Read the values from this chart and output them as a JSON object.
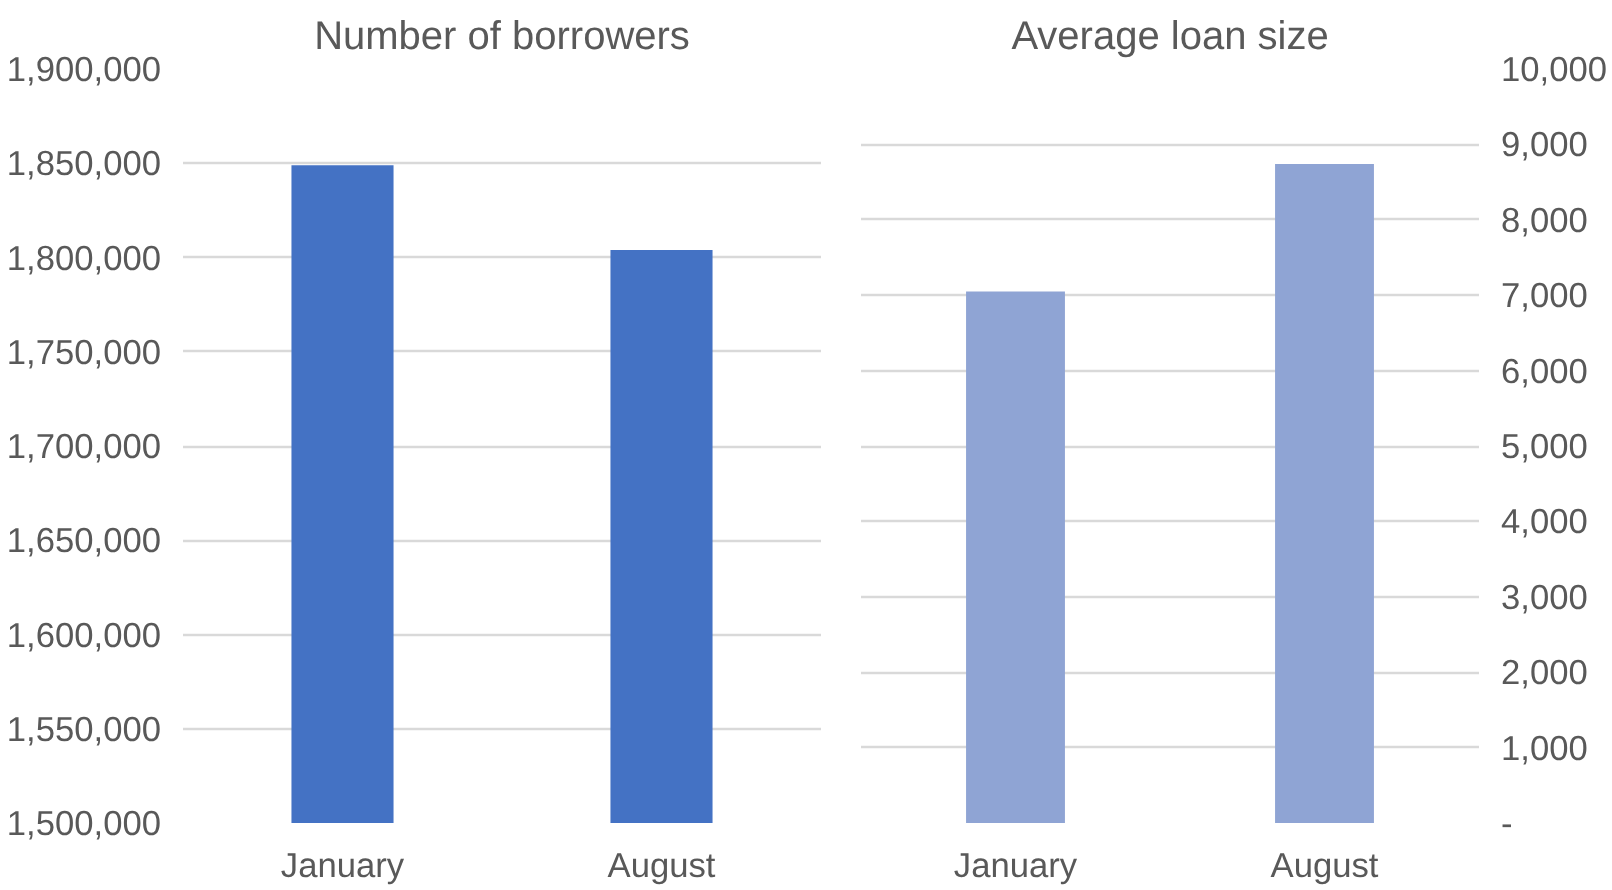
{
  "chart_data": [
    {
      "type": "bar",
      "title": "Number of borrowers",
      "categories": [
        "January",
        "August"
      ],
      "series": [
        {
          "color": "#4472c4",
          "values": [
            1849000,
            1804000
          ]
        }
      ],
      "ylim": [
        1500000,
        1900000
      ],
      "yticks": [
        {
          "value": 1500000,
          "label": "1,500,000"
        },
        {
          "value": 1550000,
          "label": "1,550,000"
        },
        {
          "value": 1600000,
          "label": "1,600,000"
        },
        {
          "value": 1650000,
          "label": "1,650,000"
        },
        {
          "value": 1700000,
          "label": "1,700,000"
        },
        {
          "value": 1750000,
          "label": "1,750,000"
        },
        {
          "value": 1800000,
          "label": "1,800,000"
        },
        {
          "value": 1850000,
          "label": "1,850,000"
        },
        {
          "value": 1900000,
          "label": "1,900,000"
        }
      ],
      "grid": "y"
    },
    {
      "type": "bar",
      "title": "Average loan size",
      "categories": [
        "January",
        "August"
      ],
      "series": [
        {
          "color": "#8fa4d4",
          "values": [
            7050,
            8740
          ],
          "axis": "y2"
        }
      ],
      "y2lim": [
        0,
        10000
      ],
      "y2ticks": [
        {
          "value": 0,
          "label": "-"
        },
        {
          "value": 1000,
          "label": "1,000"
        },
        {
          "value": 2000,
          "label": "2,000"
        },
        {
          "value": 3000,
          "label": "3,000"
        },
        {
          "value": 4000,
          "label": "4,000"
        },
        {
          "value": 5000,
          "label": "5,000"
        },
        {
          "value": 6000,
          "label": "6,000"
        },
        {
          "value": 7000,
          "label": "7,000"
        },
        {
          "value": 8000,
          "label": "8,000"
        },
        {
          "value": 9000,
          "label": "9,000"
        },
        {
          "value": 10000,
          "label": "10,000"
        }
      ],
      "grid": "y"
    }
  ]
}
